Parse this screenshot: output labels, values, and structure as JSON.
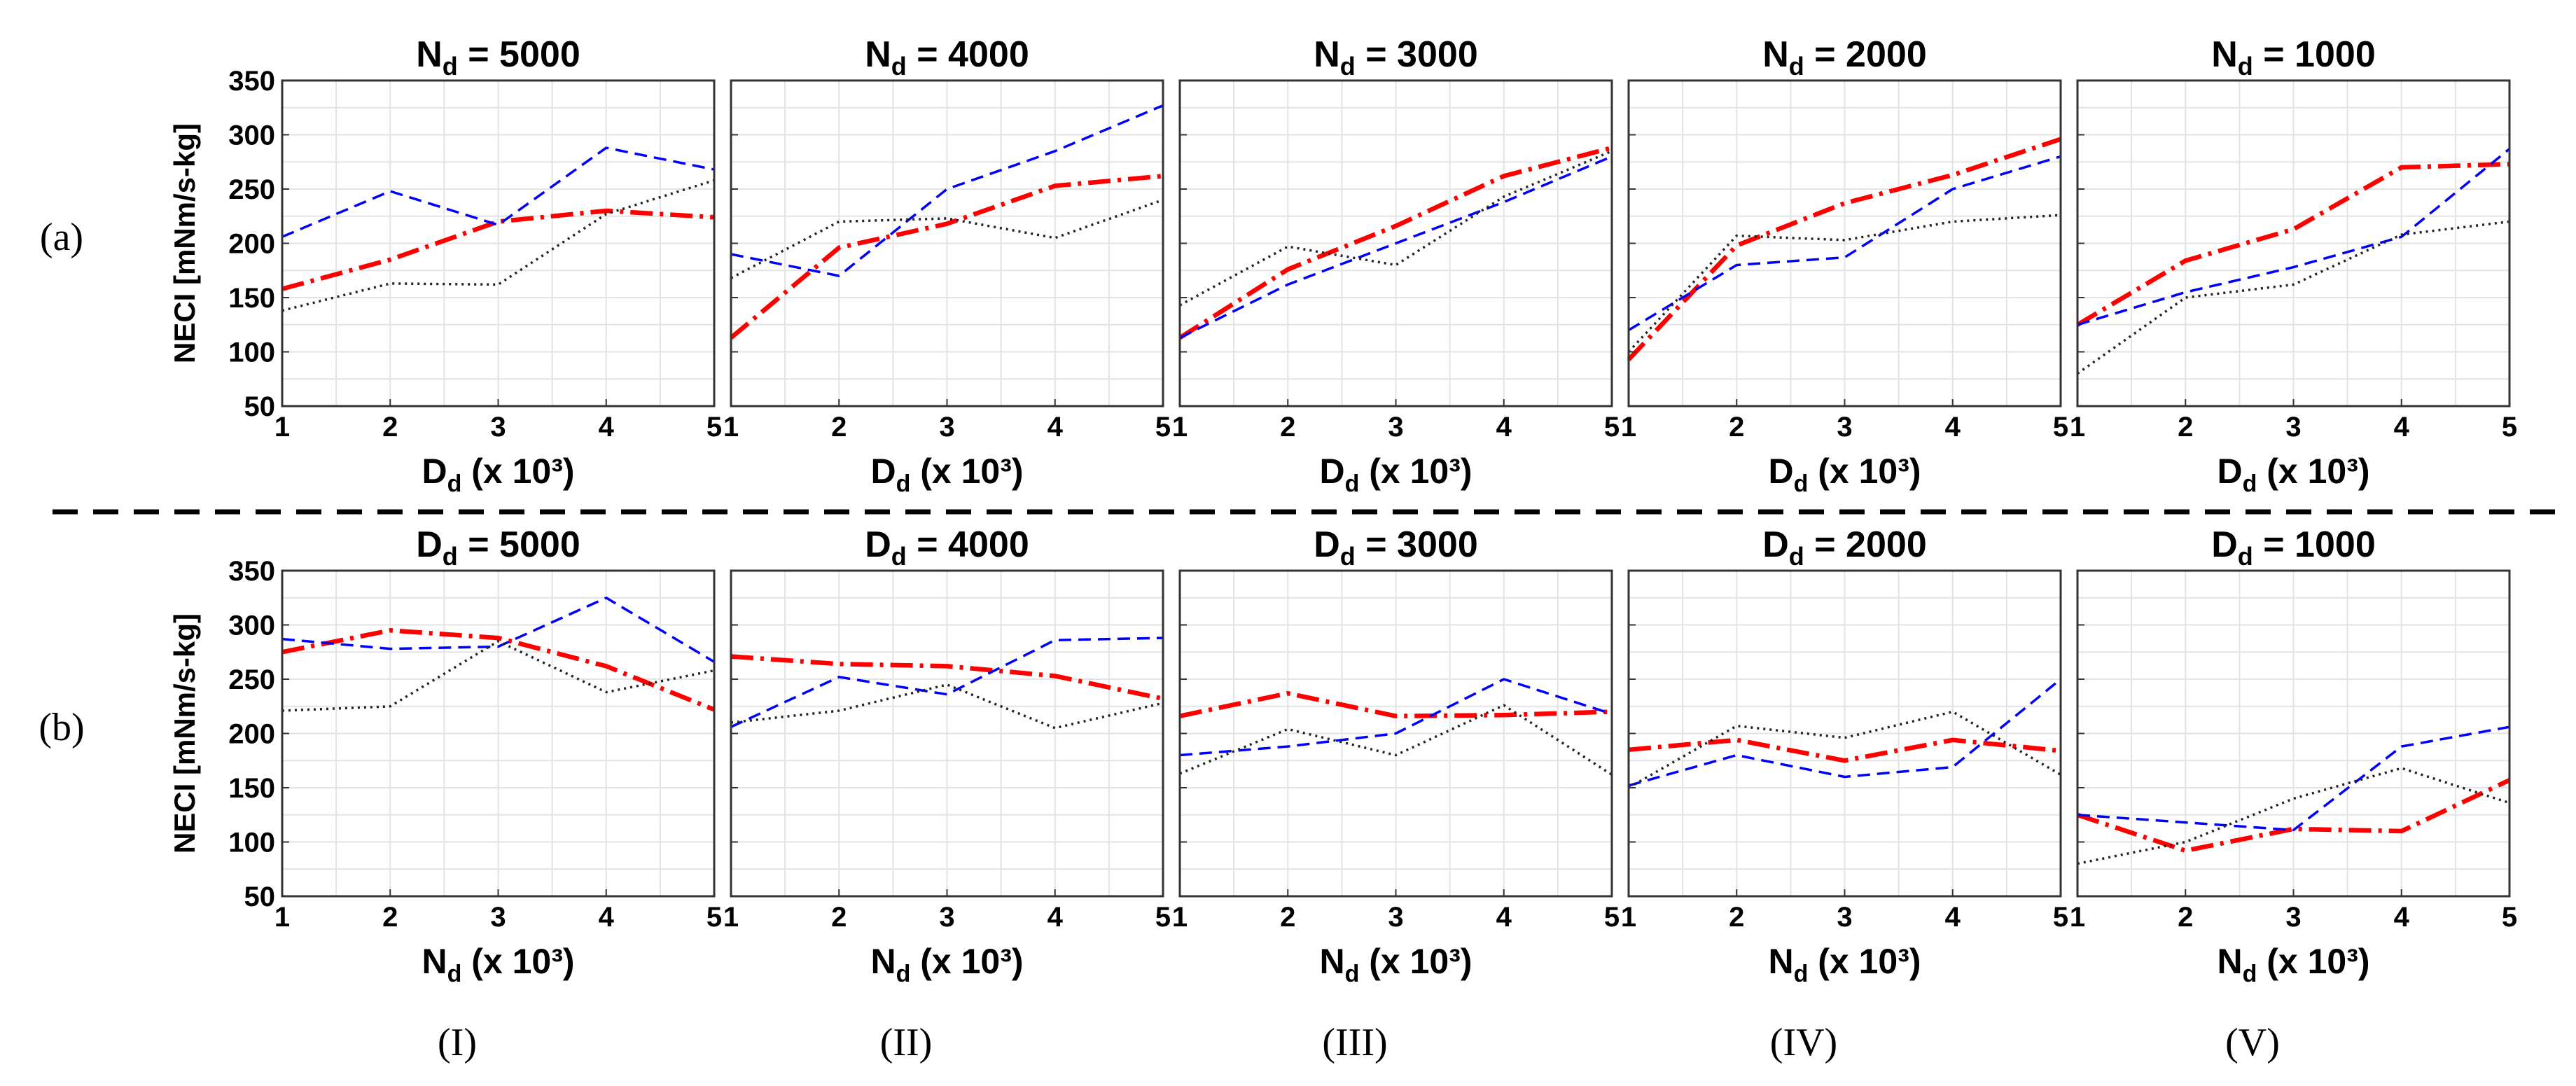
{
  "row_labels": [
    "(a)",
    "(b)"
  ],
  "column_labels": [
    "(I)",
    "(II)",
    "(III)",
    "(IV)",
    "(V)"
  ],
  "colors": {
    "red_series": "#ff0000",
    "blue_series": "#0000ff",
    "black_series": "#222222",
    "grid": "#e3e3e3",
    "separator": "#000000"
  },
  "chart_data": [
    {
      "type": "line",
      "row": 0,
      "col": 0,
      "title_var": "N",
      "title_sub": "d",
      "title_value": "= 5000",
      "xlabel_var": "D",
      "xlabel_sub": "d",
      "xlabel_rest": "(x 10³)",
      "ylabel": "NECI [mNm/s-kg]",
      "x": [
        1,
        2,
        3,
        4,
        5
      ],
      "xlim": [
        1,
        5
      ],
      "ylim": [
        50,
        350
      ],
      "yticks": [
        50,
        100,
        150,
        200,
        250,
        300,
        350
      ],
      "series": [
        {
          "name": "red-dashdot",
          "style": "dashdot",
          "values": [
            158,
            185,
            220,
            230,
            224
          ]
        },
        {
          "name": "blue-dashed",
          "style": "dashed",
          "values": [
            206,
            248,
            217,
            288,
            268
          ]
        },
        {
          "name": "black-dotted",
          "style": "dotted",
          "values": [
            138,
            163,
            162,
            227,
            258
          ]
        }
      ]
    },
    {
      "type": "line",
      "row": 0,
      "col": 1,
      "title_var": "N",
      "title_sub": "d",
      "title_value": "= 4000",
      "xlabel_var": "D",
      "xlabel_sub": "d",
      "xlabel_rest": "(x 10³)",
      "ylabel": "",
      "x": [
        1,
        2,
        3,
        4,
        5
      ],
      "xlim": [
        1,
        5
      ],
      "ylim": [
        50,
        350
      ],
      "yticks": [
        50,
        100,
        150,
        200,
        250,
        300,
        350
      ],
      "series": [
        {
          "name": "red-dashdot",
          "style": "dashdot",
          "values": [
            113,
            196,
            218,
            253,
            262
          ]
        },
        {
          "name": "blue-dashed",
          "style": "dashed",
          "values": [
            190,
            170,
            250,
            285,
            327
          ]
        },
        {
          "name": "black-dotted",
          "style": "dotted",
          "values": [
            168,
            220,
            223,
            205,
            240
          ]
        }
      ]
    },
    {
      "type": "line",
      "row": 0,
      "col": 2,
      "title_var": "N",
      "title_sub": "d",
      "title_value": "= 3000",
      "xlabel_var": "D",
      "xlabel_sub": "d",
      "xlabel_rest": "(x 10³)",
      "ylabel": "",
      "x": [
        1,
        2,
        3,
        4,
        5
      ],
      "xlim": [
        1,
        5
      ],
      "ylim": [
        50,
        350
      ],
      "yticks": [
        50,
        100,
        150,
        200,
        250,
        300,
        350
      ],
      "series": [
        {
          "name": "red-dashdot",
          "style": "dashdot",
          "values": [
            113,
            176,
            216,
            262,
            288
          ]
        },
        {
          "name": "blue-dashed",
          "style": "dashed",
          "values": [
            113,
            162,
            200,
            238,
            280
          ]
        },
        {
          "name": "black-dotted",
          "style": "dotted",
          "values": [
            143,
            197,
            180,
            243,
            285
          ]
        }
      ]
    },
    {
      "type": "line",
      "row": 0,
      "col": 3,
      "title_var": "N",
      "title_sub": "d",
      "title_value": "= 2000",
      "xlabel_var": "D",
      "xlabel_sub": "d",
      "xlabel_rest": "(x 10³)",
      "ylabel": "",
      "x": [
        1,
        2,
        3,
        4,
        5
      ],
      "xlim": [
        1,
        5
      ],
      "ylim": [
        50,
        350
      ],
      "yticks": [
        50,
        100,
        150,
        200,
        250,
        300,
        350
      ],
      "series": [
        {
          "name": "red-dashdot",
          "style": "dashdot",
          "values": [
            93,
            198,
            237,
            263,
            296
          ]
        },
        {
          "name": "blue-dashed",
          "style": "dashed",
          "values": [
            120,
            180,
            187,
            250,
            280
          ]
        },
        {
          "name": "black-dotted",
          "style": "dotted",
          "values": [
            100,
            207,
            203,
            220,
            226
          ]
        }
      ]
    },
    {
      "type": "line",
      "row": 0,
      "col": 4,
      "title_var": "N",
      "title_sub": "d",
      "title_value": "= 1000",
      "xlabel_var": "D",
      "xlabel_sub": "d",
      "xlabel_rest": "(x 10³)",
      "ylabel": "",
      "x": [
        1,
        2,
        3,
        4,
        5
      ],
      "xlim": [
        1,
        5
      ],
      "ylim": [
        50,
        350
      ],
      "yticks": [
        50,
        100,
        150,
        200,
        250,
        300,
        350
      ],
      "series": [
        {
          "name": "red-dashdot",
          "style": "dashdot",
          "values": [
            125,
            184,
            213,
            270,
            273
          ]
        },
        {
          "name": "blue-dashed",
          "style": "dashed",
          "values": [
            125,
            155,
            178,
            206,
            287
          ]
        },
        {
          "name": "black-dotted",
          "style": "dotted",
          "values": [
            80,
            150,
            162,
            208,
            220
          ]
        }
      ]
    },
    {
      "type": "line",
      "row": 1,
      "col": 0,
      "title_var": "D",
      "title_sub": "d",
      "title_value": "= 5000",
      "xlabel_var": "N",
      "xlabel_sub": "d",
      "xlabel_rest": "(x 10³)",
      "ylabel": "NECI [mNm/s-kg]",
      "x": [
        1,
        2,
        3,
        4,
        5
      ],
      "xlim": [
        1,
        5
      ],
      "ylim": [
        50,
        350
      ],
      "yticks": [
        50,
        100,
        150,
        200,
        250,
        300,
        350
      ],
      "series": [
        {
          "name": "red-dashdot",
          "style": "dashdot",
          "values": [
            275,
            295,
            288,
            262,
            222
          ]
        },
        {
          "name": "blue-dashed",
          "style": "dashed",
          "values": [
            287,
            278,
            280,
            325,
            266
          ]
        },
        {
          "name": "black-dotted",
          "style": "dotted",
          "values": [
            221,
            225,
            285,
            238,
            258
          ]
        }
      ]
    },
    {
      "type": "line",
      "row": 1,
      "col": 1,
      "title_var": "D",
      "title_sub": "d",
      "title_value": "= 4000",
      "xlabel_var": "N",
      "xlabel_sub": "d",
      "xlabel_rest": "(x 10³)",
      "ylabel": "",
      "x": [
        1,
        2,
        3,
        4,
        5
      ],
      "xlim": [
        1,
        5
      ],
      "ylim": [
        50,
        350
      ],
      "yticks": [
        50,
        100,
        150,
        200,
        250,
        300,
        350
      ],
      "series": [
        {
          "name": "red-dashdot",
          "style": "dashdot",
          "values": [
            271,
            264,
            262,
            253,
            232
          ]
        },
        {
          "name": "blue-dashed",
          "style": "dashed",
          "values": [
            206,
            252,
            236,
            286,
            288
          ]
        },
        {
          "name": "black-dotted",
          "style": "dotted",
          "values": [
            210,
            221,
            245,
            205,
            228
          ]
        }
      ]
    },
    {
      "type": "line",
      "row": 1,
      "col": 2,
      "title_var": "D",
      "title_sub": "d",
      "title_value": "= 3000",
      "xlabel_var": "N",
      "xlabel_sub": "d",
      "xlabel_rest": "(x 10³)",
      "ylabel": "",
      "x": [
        1,
        2,
        3,
        4,
        5
      ],
      "xlim": [
        1,
        5
      ],
      "ylim": [
        50,
        350
      ],
      "yticks": [
        50,
        100,
        150,
        200,
        250,
        300,
        350
      ],
      "series": [
        {
          "name": "red-dashdot",
          "style": "dashdot",
          "values": [
            216,
            237,
            216,
            217,
            220
          ]
        },
        {
          "name": "blue-dashed",
          "style": "dashed",
          "values": [
            180,
            188,
            200,
            250,
            218
          ]
        },
        {
          "name": "black-dotted",
          "style": "dotted",
          "values": [
            163,
            204,
            180,
            226,
            162
          ]
        }
      ]
    },
    {
      "type": "line",
      "row": 1,
      "col": 3,
      "title_var": "D",
      "title_sub": "d",
      "title_value": "= 2000",
      "xlabel_var": "N",
      "xlabel_sub": "d",
      "xlabel_rest": "(x 10³)",
      "ylabel": "",
      "x": [
        1,
        2,
        3,
        4,
        5
      ],
      "xlim": [
        1,
        5
      ],
      "ylim": [
        50,
        350
      ],
      "yticks": [
        50,
        100,
        150,
        200,
        250,
        300,
        350
      ],
      "series": [
        {
          "name": "red-dashdot",
          "style": "dashdot",
          "values": [
            185,
            194,
            175,
            194,
            184
          ]
        },
        {
          "name": "blue-dashed",
          "style": "dashed",
          "values": [
            152,
            180,
            160,
            169,
            250
          ]
        },
        {
          "name": "black-dotted",
          "style": "dotted",
          "values": [
            150,
            207,
            196,
            220,
            162
          ]
        }
      ]
    },
    {
      "type": "line",
      "row": 1,
      "col": 4,
      "title_var": "D",
      "title_sub": "d",
      "title_value": "= 1000",
      "xlabel_var": "N",
      "xlabel_sub": "d",
      "xlabel_rest": "(x 10³)",
      "ylabel": "",
      "x": [
        1,
        2,
        3,
        4,
        5
      ],
      "xlim": [
        1,
        5
      ],
      "ylim": [
        50,
        350
      ],
      "yticks": [
        50,
        100,
        150,
        200,
        250,
        300,
        350
      ],
      "series": [
        {
          "name": "red-dashdot",
          "style": "dashdot",
          "values": [
            125,
            92,
            112,
            110,
            157
          ]
        },
        {
          "name": "blue-dashed",
          "style": "dashed",
          "values": [
            125,
            118,
            111,
            188,
            206
          ]
        },
        {
          "name": "black-dotted",
          "style": "dotted",
          "values": [
            80,
            100,
            140,
            168,
            136
          ]
        }
      ]
    }
  ]
}
